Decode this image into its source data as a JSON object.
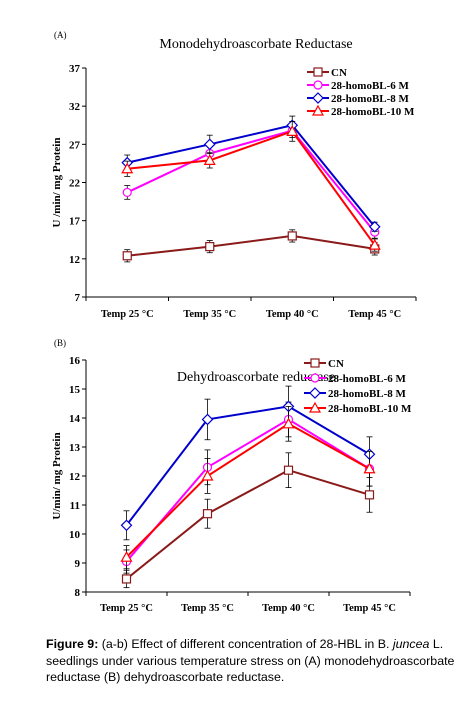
{
  "chart_data": [
    {
      "type": "line",
      "panel_label": "(A)",
      "title": "Monodehydroascorbate Reductase",
      "ylabel": "U /min/ mg Protein",
      "xlabel": "",
      "categories": [
        "Temp 25 °C",
        "Temp 35 °C",
        "Temp 40 °C",
        "Temp 45 °C"
      ],
      "ylim": [
        7,
        37
      ],
      "yticks": [
        7,
        12,
        17,
        22,
        27,
        32,
        37
      ],
      "grid": false,
      "legend": "top-right",
      "series": [
        {
          "name": "CN",
          "marker": "square",
          "color": "#8b1a1a",
          "values": [
            12.4,
            13.6,
            15.0,
            13.3
          ],
          "errors": [
            0.8,
            0.8,
            0.8,
            0.8
          ]
        },
        {
          "name": "28-homoBL-6 M",
          "marker": "circle",
          "color": "#ff00ff",
          "values": [
            20.7,
            25.8,
            28.8,
            15.5
          ],
          "errors": [
            0.9,
            0.9,
            0.9,
            0.8
          ]
        },
        {
          "name": "28-homoBL-8 M",
          "marker": "diamond",
          "color": "#0000cc",
          "values": [
            24.6,
            27.0,
            29.5,
            16.2
          ],
          "errors": [
            1.0,
            1.2,
            1.2,
            0.6
          ]
        },
        {
          "name": "28-homoBL-10 M",
          "marker": "triangle",
          "color": "#ff0000",
          "values": [
            23.8,
            24.9,
            28.7,
            13.8
          ],
          "errors": [
            1.0,
            1.0,
            1.3,
            0.8
          ]
        }
      ]
    },
    {
      "type": "line",
      "panel_label": "(B)",
      "title": "Dehydroascorbate reductase",
      "ylabel": "U/min/ mg Protein",
      "xlabel": "",
      "categories": [
        "Temp 25 °C",
        "Temp 35 °C",
        "Temp 40 °C",
        "Temp 45 °C"
      ],
      "ylim": [
        8,
        16
      ],
      "yticks": [
        8,
        9,
        10,
        11,
        12,
        13,
        14,
        15,
        16
      ],
      "grid": false,
      "legend": "top-right",
      "series": [
        {
          "name": "CN",
          "marker": "square",
          "color": "#8b1a1a",
          "values": [
            8.45,
            10.7,
            12.2,
            11.35
          ],
          "errors": [
            0.3,
            0.5,
            0.6,
            0.6
          ]
        },
        {
          "name": "28-homoBL-6 M",
          "marker": "circle",
          "color": "#ff00ff",
          "values": [
            9.05,
            12.3,
            13.95,
            12.25
          ],
          "errors": [
            0.4,
            0.6,
            0.6,
            0.6
          ]
        },
        {
          "name": "28-homoBL-8 M",
          "marker": "diamond",
          "color": "#0000cc",
          "values": [
            10.3,
            13.95,
            14.4,
            12.75
          ],
          "errors": [
            0.5,
            0.7,
            0.7,
            0.6
          ]
        },
        {
          "name": "28-homoBL-10 M",
          "marker": "triangle",
          "color": "#ff0000",
          "values": [
            9.2,
            12.0,
            13.8,
            12.25
          ],
          "errors": [
            0.4,
            0.6,
            0.6,
            0.6
          ]
        }
      ]
    }
  ],
  "caption": {
    "label": "Figure 9:",
    "text_before_italic": " (a-b) Effect of different concentration of 28-HBL in B. ",
    "italic": "juncea",
    "text_after_italic": " L. seedlings under various temperature stress on (A) monodehydroascorbate reductase (B) dehydroascorbate reductase."
  }
}
